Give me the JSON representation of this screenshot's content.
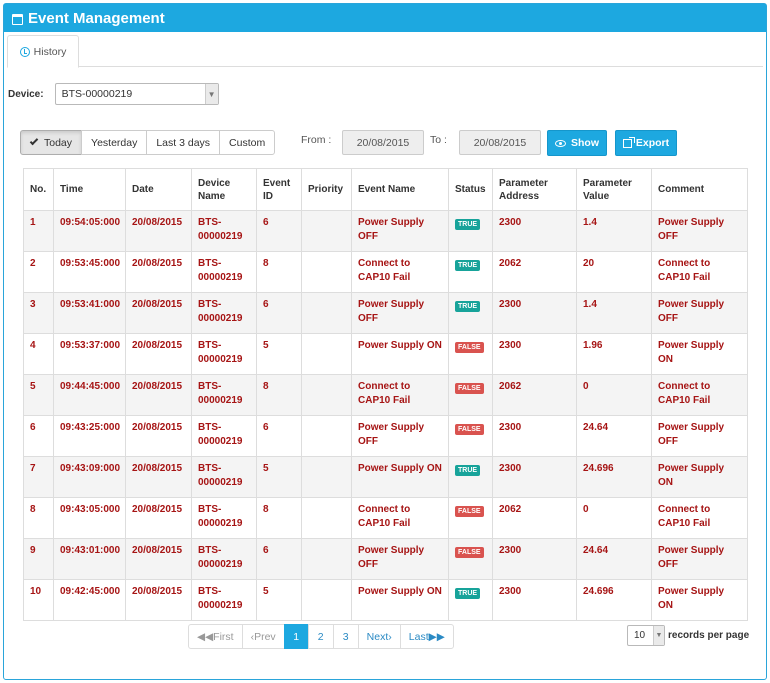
{
  "panel": {
    "title": "Event Management"
  },
  "tabs": [
    {
      "label": "History"
    }
  ],
  "device": {
    "label": "Device:",
    "value": "BTS-00000219"
  },
  "range_buttons": [
    {
      "label": "Today",
      "active": true
    },
    {
      "label": "Yesterday"
    },
    {
      "label": "Last 3 days"
    },
    {
      "label": "Custom"
    }
  ],
  "date_filter": {
    "from_label": "From :",
    "from_value": "20/08/2015",
    "to_label": "To :",
    "to_value": "20/08/2015",
    "show_label": "Show",
    "export_label": "Export"
  },
  "table": {
    "columns": [
      "No.",
      "Time",
      "Date",
      "Device Name",
      "Event ID",
      "Priority",
      "Event Name",
      "Status",
      "Parameter Address",
      "Parameter Value",
      "Comment"
    ],
    "rows": [
      {
        "no": "1",
        "time": "09:54:05:000",
        "date": "20/08/2015",
        "device": "BTS-00000219",
        "event_id": "6",
        "priority": "",
        "event_name": "Power Supply OFF",
        "status": "TRUE",
        "param_addr": "2300",
        "param_value": "1.4",
        "comment": "Power Supply OFF"
      },
      {
        "no": "2",
        "time": "09:53:45:000",
        "date": "20/08/2015",
        "device": "BTS-00000219",
        "event_id": "8",
        "priority": "",
        "event_name": "Connect to CAP10 Fail",
        "status": "TRUE",
        "param_addr": "2062",
        "param_value": "20",
        "comment": "Connect to CAP10 Fail"
      },
      {
        "no": "3",
        "time": "09:53:41:000",
        "date": "20/08/2015",
        "device": "BTS-00000219",
        "event_id": "6",
        "priority": "",
        "event_name": "Power Supply OFF",
        "status": "TRUE",
        "param_addr": "2300",
        "param_value": "1.4",
        "comment": "Power Supply OFF"
      },
      {
        "no": "4",
        "time": "09:53:37:000",
        "date": "20/08/2015",
        "device": "BTS-00000219",
        "event_id": "5",
        "priority": "",
        "event_name": "Power Supply ON",
        "status": "FALSE",
        "param_addr": "2300",
        "param_value": "1.96",
        "comment": "Power Supply ON"
      },
      {
        "no": "5",
        "time": "09:44:45:000",
        "date": "20/08/2015",
        "device": "BTS-00000219",
        "event_id": "8",
        "priority": "",
        "event_name": "Connect to CAP10 Fail",
        "status": "FALSE",
        "param_addr": "2062",
        "param_value": "0",
        "comment": "Connect to CAP10 Fail"
      },
      {
        "no": "6",
        "time": "09:43:25:000",
        "date": "20/08/2015",
        "device": "BTS-00000219",
        "event_id": "6",
        "priority": "",
        "event_name": "Power Supply OFF",
        "status": "FALSE",
        "param_addr": "2300",
        "param_value": "24.64",
        "comment": "Power Supply OFF"
      },
      {
        "no": "7",
        "time": "09:43:09:000",
        "date": "20/08/2015",
        "device": "BTS-00000219",
        "event_id": "5",
        "priority": "",
        "event_name": "Power Supply ON",
        "status": "TRUE",
        "param_addr": "2300",
        "param_value": "24.696",
        "comment": "Power Supply ON"
      },
      {
        "no": "8",
        "time": "09:43:05:000",
        "date": "20/08/2015",
        "device": "BTS-00000219",
        "event_id": "8",
        "priority": "",
        "event_name": "Connect to CAP10 Fail",
        "status": "FALSE",
        "param_addr": "2062",
        "param_value": "0",
        "comment": "Connect to CAP10 Fail"
      },
      {
        "no": "9",
        "time": "09:43:01:000",
        "date": "20/08/2015",
        "device": "BTS-00000219",
        "event_id": "6",
        "priority": "",
        "event_name": "Power Supply OFF",
        "status": "FALSE",
        "param_addr": "2300",
        "param_value": "24.64",
        "comment": "Power Supply OFF"
      },
      {
        "no": "10",
        "time": "09:42:45:000",
        "date": "20/08/2015",
        "device": "BTS-00000219",
        "event_id": "5",
        "priority": "",
        "event_name": "Power Supply ON",
        "status": "TRUE",
        "param_addr": "2300",
        "param_value": "24.696",
        "comment": "Power Supply ON"
      }
    ]
  },
  "pagination": {
    "first": "First",
    "prev": "Prev",
    "pages": [
      "1",
      "2",
      "3"
    ],
    "current_page": "1",
    "next": "Next",
    "last": "Last"
  },
  "records_per_page": {
    "value": "10",
    "label": "records per page"
  },
  "colors": {
    "accent": "#1da8e0",
    "true_badge": "#17a39a",
    "false_badge": "#d9534f",
    "row_text": "#a61414"
  }
}
